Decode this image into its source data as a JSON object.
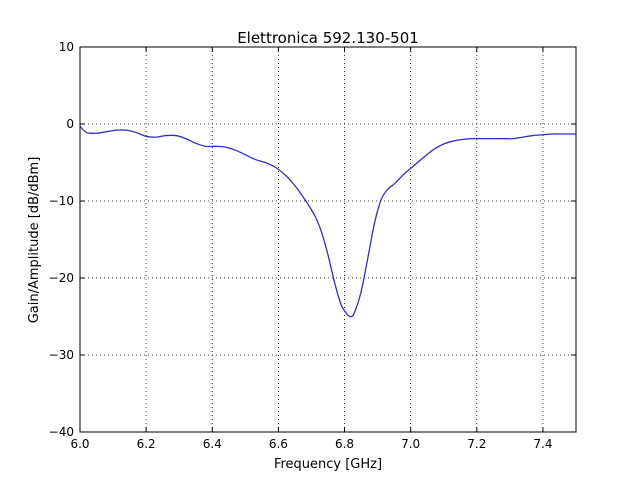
{
  "chart_data": {
    "type": "line",
    "title": "Elettronica 592.130-501",
    "xlabel": "Frequency [GHz]",
    "ylabel": "Gain/Amplitude [dB/dBm]",
    "xlim": [
      6.0,
      7.5
    ],
    "ylim": [
      -40,
      10
    ],
    "xticks": [
      6.0,
      6.2,
      6.4,
      6.6,
      6.8,
      7.0,
      7.2,
      7.4
    ],
    "xtick_labels": [
      "6.0",
      "6.2",
      "6.4",
      "6.6",
      "6.8",
      "7.0",
      "7.2",
      "7.4"
    ],
    "yticks": [
      10,
      0,
      -10,
      -20,
      -30,
      -40
    ],
    "ytick_labels": [
      "10",
      "0",
      "−10",
      "−20",
      "−30",
      "−40"
    ],
    "grid": true,
    "series": [
      {
        "color": "#3030c0",
        "x": [
          6.0,
          6.02,
          6.05,
          6.08,
          6.11,
          6.14,
          6.17,
          6.2,
          6.23,
          6.26,
          6.29,
          6.32,
          6.35,
          6.38,
          6.41,
          6.44,
          6.47,
          6.5,
          6.53,
          6.56,
          6.59,
          6.62,
          6.65,
          6.68,
          6.71,
          6.73,
          6.75,
          6.77,
          6.79,
          6.81,
          6.82,
          6.83,
          6.85,
          6.87,
          6.89,
          6.91,
          6.93,
          6.95,
          6.98,
          7.01,
          7.04,
          7.07,
          7.1,
          7.13,
          7.16,
          7.19,
          7.22,
          7.25,
          7.28,
          7.31,
          7.34,
          7.37,
          7.4,
          7.43,
          7.46,
          7.49,
          7.5
        ],
        "y": [
          -0.3,
          -1.1,
          -1.2,
          -1.0,
          -0.8,
          -0.8,
          -1.1,
          -1.6,
          -1.7,
          -1.5,
          -1.5,
          -1.9,
          -2.5,
          -2.9,
          -2.9,
          -3.0,
          -3.4,
          -4.0,
          -4.6,
          -5.0,
          -5.6,
          -6.6,
          -8.0,
          -9.8,
          -11.9,
          -14.0,
          -17.0,
          -20.6,
          -23.5,
          -24.8,
          -25.0,
          -24.5,
          -21.8,
          -17.5,
          -13.0,
          -9.9,
          -8.5,
          -7.8,
          -6.5,
          -5.4,
          -4.3,
          -3.3,
          -2.6,
          -2.2,
          -2.0,
          -1.9,
          -1.9,
          -1.9,
          -1.9,
          -1.9,
          -1.7,
          -1.5,
          -1.4,
          -1.3,
          -1.3,
          -1.3,
          -1.3
        ]
      }
    ]
  }
}
